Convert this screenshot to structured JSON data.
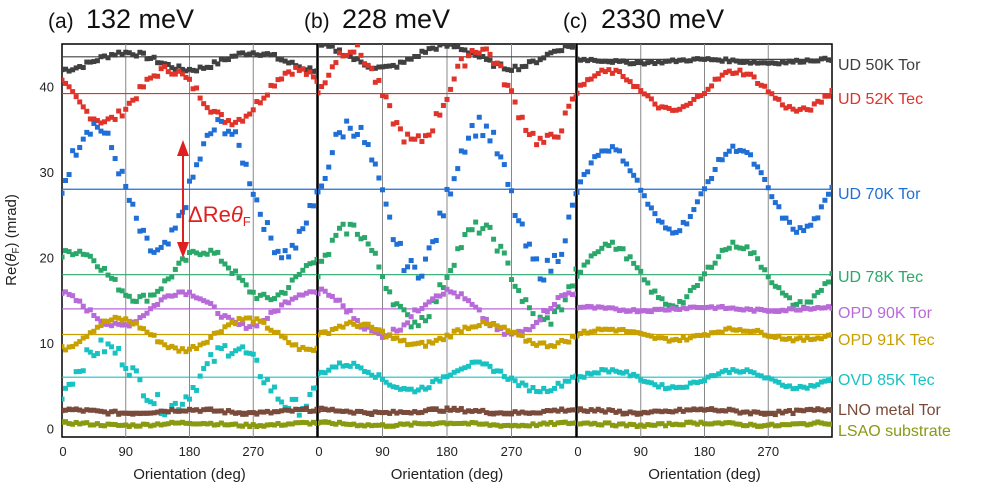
{
  "figure": {
    "ylabel_prefix": "Re(",
    "ylabel_symbol": "θ",
    "ylabel_sub": "F",
    "ylabel_suffix": ") (mrad)",
    "annotation_delta": "ΔRe",
    "annotation_symbol": "θ",
    "annotation_sub": "F",
    "annotation_color": "#e02020"
  },
  "chart_data": [
    {
      "type": "scatter",
      "panel_label": "(a)",
      "title": "132 meV",
      "xlabel": "Orientation (deg)",
      "ylabel": "Re(θF) (mrad)",
      "xlim": [
        0,
        360
      ],
      "ylim": [
        -1,
        45
      ],
      "xticks": [
        0,
        90,
        180,
        270
      ],
      "yticks": [
        0,
        10,
        20,
        30,
        40
      ],
      "grid": "vertical",
      "series": [
        {
          "name": "UD 50K Tor",
          "color": "#404040",
          "baseline": 43.5,
          "params": {
            "offset": 43.0,
            "amp": 1.0,
            "phase": 90,
            "noise": 0.3
          }
        },
        {
          "name": "UD 52K Tec",
          "color": "#e0332a",
          "baseline": 39.2,
          "params": {
            "offset": 39.0,
            "amp": 3.0,
            "phase": 150,
            "noise": 0.5
          }
        },
        {
          "name": "UD 70K Tor",
          "color": "#1f6fd6",
          "baseline": 28.0,
          "params": {
            "offset": 28.0,
            "amp": 7.5,
            "phase": 45,
            "noise": 1.0
          }
        },
        {
          "name": "UD 78K Tec",
          "color": "#2aa86a",
          "baseline": 18.0,
          "params": {
            "offset": 18.0,
            "amp": 2.8,
            "phase": 200,
            "noise": 0.5
          }
        },
        {
          "name": "OPD 90K Tor",
          "color": "#b86ad9",
          "baseline": 14.0,
          "params": {
            "offset": 14.0,
            "amp": 2.0,
            "phase": 170,
            "noise": 0.3
          }
        },
        {
          "name": "OPD 91K Tec",
          "color": "#c8a000",
          "baseline": 11.0,
          "params": {
            "offset": 11.0,
            "amp": 1.8,
            "phase": 260,
            "noise": 0.3
          }
        },
        {
          "name": "OVD 85K Tec",
          "color": "#19c2c2",
          "baseline": 6.0,
          "params": {
            "offset": 6.0,
            "amp": 3.5,
            "phase": 60,
            "noise": 1.0
          }
        },
        {
          "name": "LNO metal Tor",
          "color": "#7a4a3a",
          "baseline": 2.0,
          "params": {
            "offset": 2.0,
            "amp": 0.2,
            "phase": 0,
            "noise": 0.2
          }
        },
        {
          "name": "LSAO substrate",
          "color": "#8a9a10",
          "baseline": 0.5,
          "params": {
            "offset": 0.5,
            "amp": 0.15,
            "phase": 0,
            "noise": 0.15
          }
        }
      ]
    },
    {
      "type": "scatter",
      "panel_label": "(b)",
      "title": "228 meV",
      "xlabel": "Orientation (deg)",
      "xlim": [
        0,
        360
      ],
      "ylim": [
        -1,
        45
      ],
      "xticks": [
        0,
        90,
        180,
        270
      ],
      "grid": "vertical",
      "series": [
        {
          "name": "UD 50K Tor",
          "color": "#404040",
          "baseline": 43.5,
          "params": {
            "offset": 43.5,
            "amp": 1.3,
            "phase": 180,
            "noise": 0.3
          }
        },
        {
          "name": "UD 52K Tec",
          "color": "#e0332a",
          "baseline": 39.2,
          "params": {
            "offset": 39.0,
            "amp": 5.5,
            "phase": 45,
            "noise": 0.8
          }
        },
        {
          "name": "UD 70K Tor",
          "color": "#1f6fd6",
          "baseline": 28.0,
          "params": {
            "offset": 27.0,
            "amp": 8.5,
            "phase": 45,
            "noise": 1.2
          }
        },
        {
          "name": "UD 78K Tec",
          "color": "#2aa86a",
          "baseline": 18.0,
          "params": {
            "offset": 18.0,
            "amp": 5.5,
            "phase": 45,
            "noise": 0.8
          }
        },
        {
          "name": "OPD 90K Tor",
          "color": "#b86ad9",
          "baseline": 14.0,
          "params": {
            "offset": 13.5,
            "amp": 2.5,
            "phase": 180,
            "noise": 0.4
          }
        },
        {
          "name": "OPD 91K Tec",
          "color": "#c8a000",
          "baseline": 11.0,
          "params": {
            "offset": 11.0,
            "amp": 1.2,
            "phase": 230,
            "noise": 0.3
          }
        },
        {
          "name": "OVD 85K Tec",
          "color": "#19c2c2",
          "baseline": 6.0,
          "params": {
            "offset": 6.0,
            "amp": 1.5,
            "phase": 220,
            "noise": 0.3
          }
        },
        {
          "name": "LNO metal Tor",
          "color": "#7a4a3a",
          "baseline": 2.0,
          "params": {
            "offset": 2.0,
            "amp": 0.2,
            "phase": 0,
            "noise": 0.2
          }
        },
        {
          "name": "LSAO substrate",
          "color": "#8a9a10",
          "baseline": 0.5,
          "params": {
            "offset": 0.5,
            "amp": 0.15,
            "phase": 0,
            "noise": 0.15
          }
        }
      ]
    },
    {
      "type": "scatter",
      "panel_label": "(c)",
      "title": "2330 meV",
      "xlabel": "Orientation (deg)",
      "xlim": [
        0,
        360
      ],
      "ylim": [
        -1,
        45
      ],
      "xticks": [
        0,
        90,
        180,
        270
      ],
      "grid": "vertical",
      "series": [
        {
          "name": "UD 50K Tor",
          "color": "#404040",
          "baseline": 43.2,
          "params": {
            "offset": 43.0,
            "amp": 0.2,
            "phase": 0,
            "noise": 0.15
          }
        },
        {
          "name": "UD 52K Tec",
          "color": "#e0332a",
          "baseline": 39.2,
          "params": {
            "offset": 39.5,
            "amp": 2.3,
            "phase": 45,
            "noise": 0.3
          }
        },
        {
          "name": "UD 70K Tor",
          "color": "#1f6fd6",
          "baseline": 28.0,
          "params": {
            "offset": 28.0,
            "amp": 4.8,
            "phase": 45,
            "noise": 0.4
          }
        },
        {
          "name": "UD 78K Tec",
          "color": "#2aa86a",
          "baseline": 18.0,
          "params": {
            "offset": 18.0,
            "amp": 3.5,
            "phase": 45,
            "noise": 0.4
          }
        },
        {
          "name": "OPD 90K Tor",
          "color": "#b86ad9",
          "baseline": 14.0,
          "params": {
            "offset": 14.0,
            "amp": 0.2,
            "phase": 0,
            "noise": 0.15
          }
        },
        {
          "name": "OPD 91K Tec",
          "color": "#c8a000",
          "baseline": 11.0,
          "params": {
            "offset": 11.0,
            "amp": 0.6,
            "phase": 45,
            "noise": 0.2
          }
        },
        {
          "name": "OVD 85K Tec",
          "color": "#19c2c2",
          "baseline": 6.0,
          "params": {
            "offset": 5.8,
            "amp": 1.0,
            "phase": 45,
            "noise": 0.2
          }
        },
        {
          "name": "LNO metal Tor",
          "color": "#7a4a3a",
          "baseline": 2.0,
          "params": {
            "offset": 2.0,
            "amp": 0.2,
            "phase": 0,
            "noise": 0.2
          }
        },
        {
          "name": "LSAO substrate",
          "color": "#8a9a10",
          "baseline": 0.5,
          "params": {
            "offset": 0.5,
            "amp": 0.15,
            "phase": 0,
            "noise": 0.15
          }
        }
      ]
    }
  ]
}
